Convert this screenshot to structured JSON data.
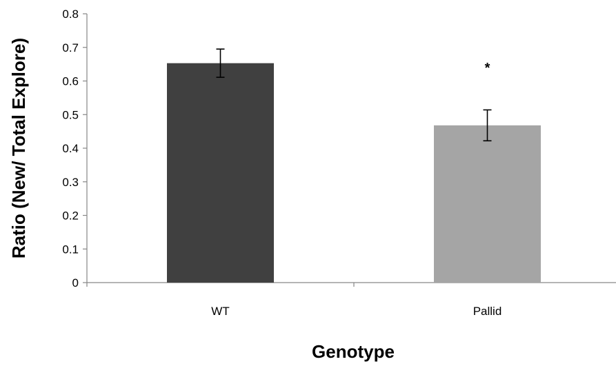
{
  "chart_data": {
    "type": "bar",
    "categories": [
      "WT",
      "Pallid"
    ],
    "values": [
      0.653,
      0.468
    ],
    "error": [
      0.042,
      0.046
    ],
    "colors": [
      "#404040",
      "#a5a5a5"
    ],
    "xlabel": "Genotype",
    "ylabel": "Ratio (New/ Total Explore)",
    "ylim": [
      0,
      0.8
    ],
    "yticks": [
      "0",
      "0.1",
      "0.2",
      "0.3",
      "0.4",
      "0.5",
      "0.6",
      "0.7",
      "0.8"
    ],
    "annotations": [
      {
        "category": "Pallid",
        "text": "*"
      }
    ],
    "grid": false,
    "legend": "none"
  }
}
